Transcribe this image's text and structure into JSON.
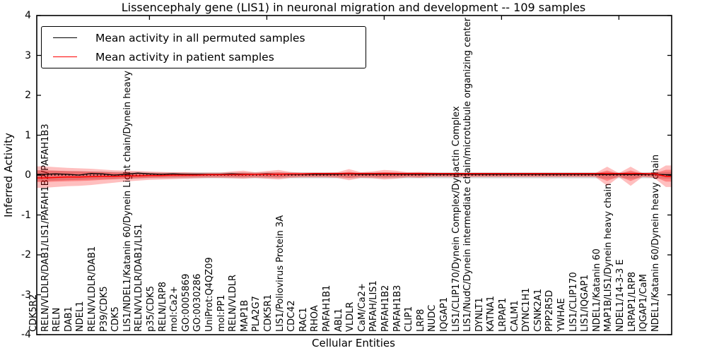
{
  "figure": {
    "background": "#ffffff",
    "accent_red": "#ff0000",
    "axes_color": "#000000"
  },
  "chart_data": {
    "type": "line",
    "title": "Lissencephaly gene (LIS1) in neuronal migration and development -- 109 samples",
    "xlabel": "Cellular Entities",
    "ylabel": "Inferred Activity",
    "ylim": [
      -4,
      4
    ],
    "ytick_values": [
      4,
      3,
      2,
      1,
      0,
      -1,
      -2,
      -3,
      -4
    ],
    "yticks": [
      "4",
      "3",
      "2",
      "1",
      "0",
      "-1",
      "-2",
      "-3",
      "-4"
    ],
    "xtick_top_indices": [
      9,
      19,
      29,
      39,
      49
    ],
    "legend_position": "upper left",
    "grid": false,
    "categories": [
      "CDK5R2",
      "RELN/VLDLR/DAB1/LIS1/PAFAH1B2/PAFAH1B3",
      "RELN",
      "DAB1",
      "NDEL1",
      "RELN/VLDLR/DAB1",
      "P39/CDK5",
      "CDK5",
      "LIS1/NDEL1/Katanin 60/Dynein Light chain/Dynein heavy chain",
      "RELN/VLDLR/DAB1/LIS1",
      "p35/CDK5",
      "RELN/LRP8",
      "mol:Ca2+",
      "GO:0005869",
      "GO:0030286",
      "UniProt:Q4QZ09",
      "mol:PP1",
      "RELN/VLDLR",
      "MAP1B",
      "PLA2G7",
      "CDK5R1",
      "LIS1/Poliovirus Protein 3A",
      "CDC42",
      "RAC1",
      "RHOA",
      "PAFAH1B1",
      "ABL1",
      "VLDLR",
      "CaM/Ca2+",
      "PAFAH/LIS1",
      "PAFAH1B2",
      "PAFAH1B3",
      "CLIP1",
      "LRP8",
      "NUDC",
      "IQGAP1",
      "LIS1/CLIP170/Dynein Complex/Dynactin Complex",
      "LIS1/NudC/Dynein intermediate chain/microtubule organizing center",
      "DYNLT1",
      "KATNA1",
      "LRPAP1",
      "CALM1",
      "DYNC1H1",
      "CSNK2A1",
      "PPP2R5D",
      "YWHAE",
      "LIS1/CLIP170",
      "LIS1/IQGAP1",
      "NDEL1/Katanin 60",
      "MAP1B/LIS1/Dynein heavy chain",
      "NDEL1/14-3-3 E",
      "LRPAP1/LRP8",
      "IQGAP1/CaM",
      "NDEL1/Katanin 60/Dynein heavy chain"
    ],
    "series": [
      {
        "name": "Mean activity in all permuted samples",
        "color": "#000000",
        "values": [
          0.02,
          0.03,
          0.02,
          0.0,
          0.04,
          0.03,
          0.0,
          0.02,
          0.05,
          0.03,
          0.02,
          0.03,
          0.02,
          0.02,
          0.02,
          0.02,
          0.03,
          0.02,
          0.02,
          0.03,
          0.02,
          0.02,
          0.02,
          0.02,
          0.02,
          0.02,
          0.03,
          0.02,
          0.02,
          0.02,
          0.02,
          0.02,
          0.02,
          0.02,
          0.02,
          0.02,
          0.02,
          0.02,
          0.02,
          0.02,
          0.02,
          0.02,
          0.02,
          0.02,
          0.02,
          0.02,
          0.02,
          0.02,
          0.01,
          0.02,
          0.01,
          0.02,
          0.02,
          0.01
        ]
      },
      {
        "name": "Mean activity in patient samples",
        "color": "#ff0000",
        "values": [
          -0.07,
          -0.06,
          -0.05,
          -0.05,
          -0.04,
          -0.03,
          -0.03,
          -0.02,
          -0.02,
          -0.01,
          -0.01,
          0.0,
          0.0,
          0.0,
          0.01,
          0.01,
          0.01,
          0.01,
          0.02,
          0.02,
          0.02,
          0.03,
          0.03,
          0.04,
          0.04,
          0.04,
          0.04,
          0.04,
          0.04,
          0.04,
          0.04,
          0.04,
          0.04,
          0.04,
          0.04,
          0.04,
          0.04,
          0.04,
          0.04,
          0.04,
          0.04,
          0.04,
          0.04,
          0.04,
          0.04,
          0.04,
          0.04,
          0.04,
          0.04,
          0.04,
          0.04,
          0.04,
          0.03,
          -0.03
        ]
      }
    ],
    "bands": [
      {
        "name": "permuted-sample-envelope",
        "color": "rgba(0,0,0,0.16)",
        "upper": [
          0.12,
          0.11,
          0.1,
          0.1,
          0.09,
          0.09,
          0.08,
          0.08,
          0.08,
          0.07,
          0.07,
          0.07,
          0.07,
          0.07,
          0.07,
          0.07,
          0.07,
          0.07,
          0.07,
          0.07,
          0.07,
          0.07,
          0.07,
          0.07,
          0.07,
          0.07,
          0.07,
          0.07,
          0.07,
          0.07,
          0.07,
          0.07,
          0.07,
          0.07,
          0.07,
          0.07,
          0.07,
          0.07,
          0.07,
          0.07,
          0.07,
          0.07,
          0.07,
          0.07,
          0.07,
          0.07,
          0.07,
          0.07,
          0.08,
          0.07,
          0.08,
          0.07,
          0.07,
          0.08
        ],
        "lower": [
          0.15,
          0.14,
          0.13,
          0.12,
          0.11,
          0.1,
          0.1,
          0.09,
          0.09,
          0.08,
          0.08,
          0.08,
          0.08,
          0.08,
          0.08,
          0.08,
          0.08,
          0.08,
          0.08,
          0.08,
          0.08,
          0.08,
          0.08,
          0.08,
          0.08,
          0.08,
          0.08,
          0.08,
          0.08,
          0.08,
          0.08,
          0.08,
          0.08,
          0.08,
          0.08,
          0.08,
          0.08,
          0.08,
          0.08,
          0.08,
          0.08,
          0.08,
          0.08,
          0.08,
          0.08,
          0.08,
          0.08,
          0.08,
          0.09,
          0.08,
          0.09,
          0.08,
          0.08,
          0.09
        ]
      },
      {
        "name": "patient-sample-envelope",
        "color": "rgba(255,0,0,0.25)",
        "inner_color": "rgba(255,0,0,0.30)",
        "inner_scale": 0.55,
        "upper": [
          0.22,
          0.2,
          0.18,
          0.17,
          0.16,
          0.14,
          0.12,
          0.11,
          0.1,
          0.09,
          0.08,
          0.07,
          0.07,
          0.06,
          0.06,
          0.06,
          0.09,
          0.11,
          0.07,
          0.1,
          0.13,
          0.08,
          0.06,
          0.06,
          0.06,
          0.07,
          0.15,
          0.07,
          0.09,
          0.13,
          0.11,
          0.07,
          0.08,
          0.06,
          0.05,
          0.05,
          0.05,
          0.05,
          0.05,
          0.05,
          0.05,
          0.05,
          0.05,
          0.05,
          0.05,
          0.05,
          0.05,
          0.05,
          0.21,
          0.05,
          0.21,
          0.05,
          0.07,
          0.24
        ],
        "lower": [
          0.32,
          0.3,
          0.28,
          0.27,
          0.25,
          0.22,
          0.19,
          0.16,
          0.14,
          0.12,
          0.11,
          0.1,
          0.09,
          0.08,
          0.07,
          0.07,
          0.08,
          0.09,
          0.07,
          0.09,
          0.11,
          0.07,
          0.06,
          0.06,
          0.06,
          0.07,
          0.13,
          0.07,
          0.08,
          0.11,
          0.09,
          0.06,
          0.07,
          0.05,
          0.05,
          0.05,
          0.05,
          0.05,
          0.05,
          0.05,
          0.05,
          0.05,
          0.05,
          0.05,
          0.05,
          0.05,
          0.05,
          0.05,
          0.27,
          0.05,
          0.27,
          0.05,
          0.07,
          0.3
        ]
      }
    ],
    "zero_line": {
      "style": "dotted",
      "color": "#000000",
      "y": 0
    }
  }
}
